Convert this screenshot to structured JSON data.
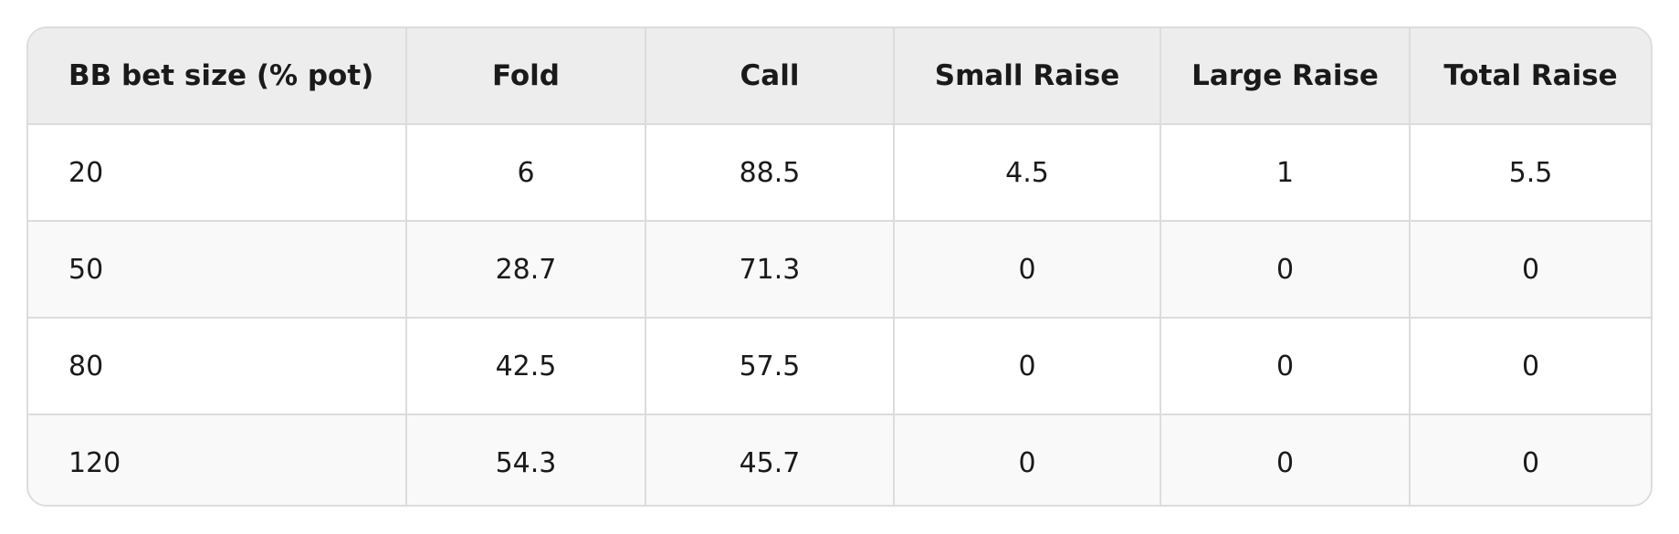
{
  "table": {
    "header": [
      "BB bet size (% pot)",
      "Fold",
      "Call",
      "Small Raise",
      "Large Raise",
      "Total Raise"
    ],
    "rows": [
      [
        "20",
        "6",
        "88.5",
        "4.5",
        "1",
        "5.5"
      ],
      [
        "50",
        "28.7",
        "71.3",
        "0",
        "0",
        "0"
      ],
      [
        "80",
        "42.5",
        "57.5",
        "0",
        "0",
        "0"
      ],
      [
        "120",
        "54.3",
        "45.7",
        "0",
        "0",
        "0"
      ]
    ]
  }
}
